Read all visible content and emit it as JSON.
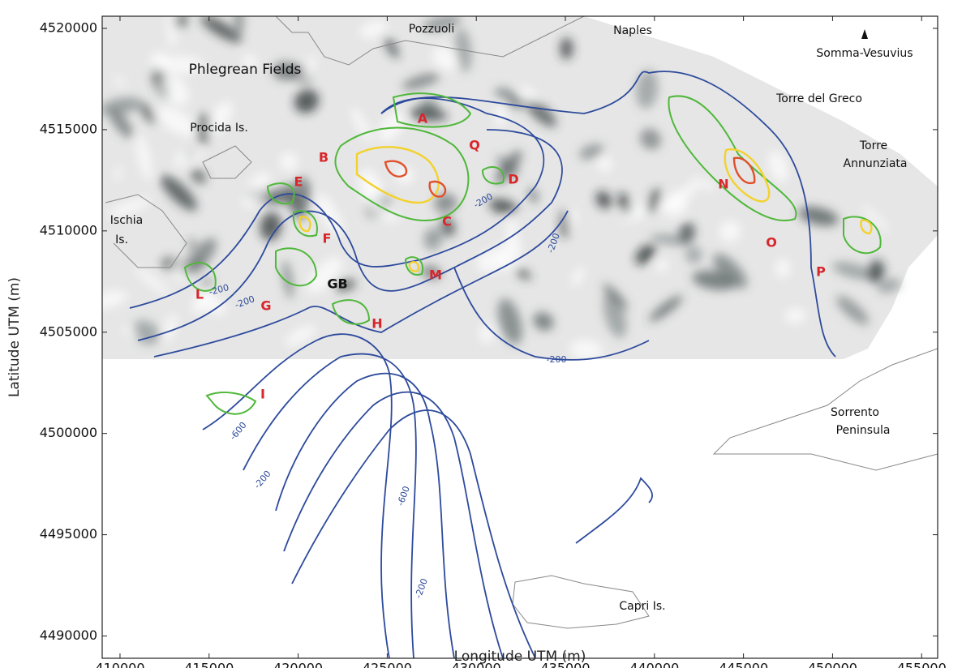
{
  "map": {
    "x_label": "Longitude UTM (m)",
    "y_label": "Latitude UTM (m)",
    "xlim": [
      409000,
      455900
    ],
    "ylim": [
      4488900,
      4520600
    ],
    "xticks": [
      410000,
      415000,
      420000,
      425000,
      430000,
      435000,
      440000,
      445000,
      450000,
      455000
    ],
    "yticks": [
      4490000,
      4495000,
      4500000,
      4505000,
      4510000,
      4515000,
      4520000
    ],
    "place_labels": [
      "Pozzuoli",
      "Naples",
      "Somma-Vesuvius",
      "Phlegrean Fields",
      "Torre del Greco",
      "Procida Is.",
      "Torre",
      "Annunziata",
      "Ischia",
      "Is.",
      "Sorrento",
      "Peninsula",
      "Capri Is."
    ],
    "anomaly_labels": [
      "A",
      "B",
      "Q",
      "D",
      "E",
      "C",
      "F",
      "M",
      "L",
      "G",
      "GB",
      "H",
      "I",
      "N",
      "O",
      "P"
    ],
    "contour_labels": [
      "-200",
      "-200",
      "-200",
      "-200",
      "-200",
      "-600",
      "-200",
      "-600",
      "-200"
    ]
  }
}
